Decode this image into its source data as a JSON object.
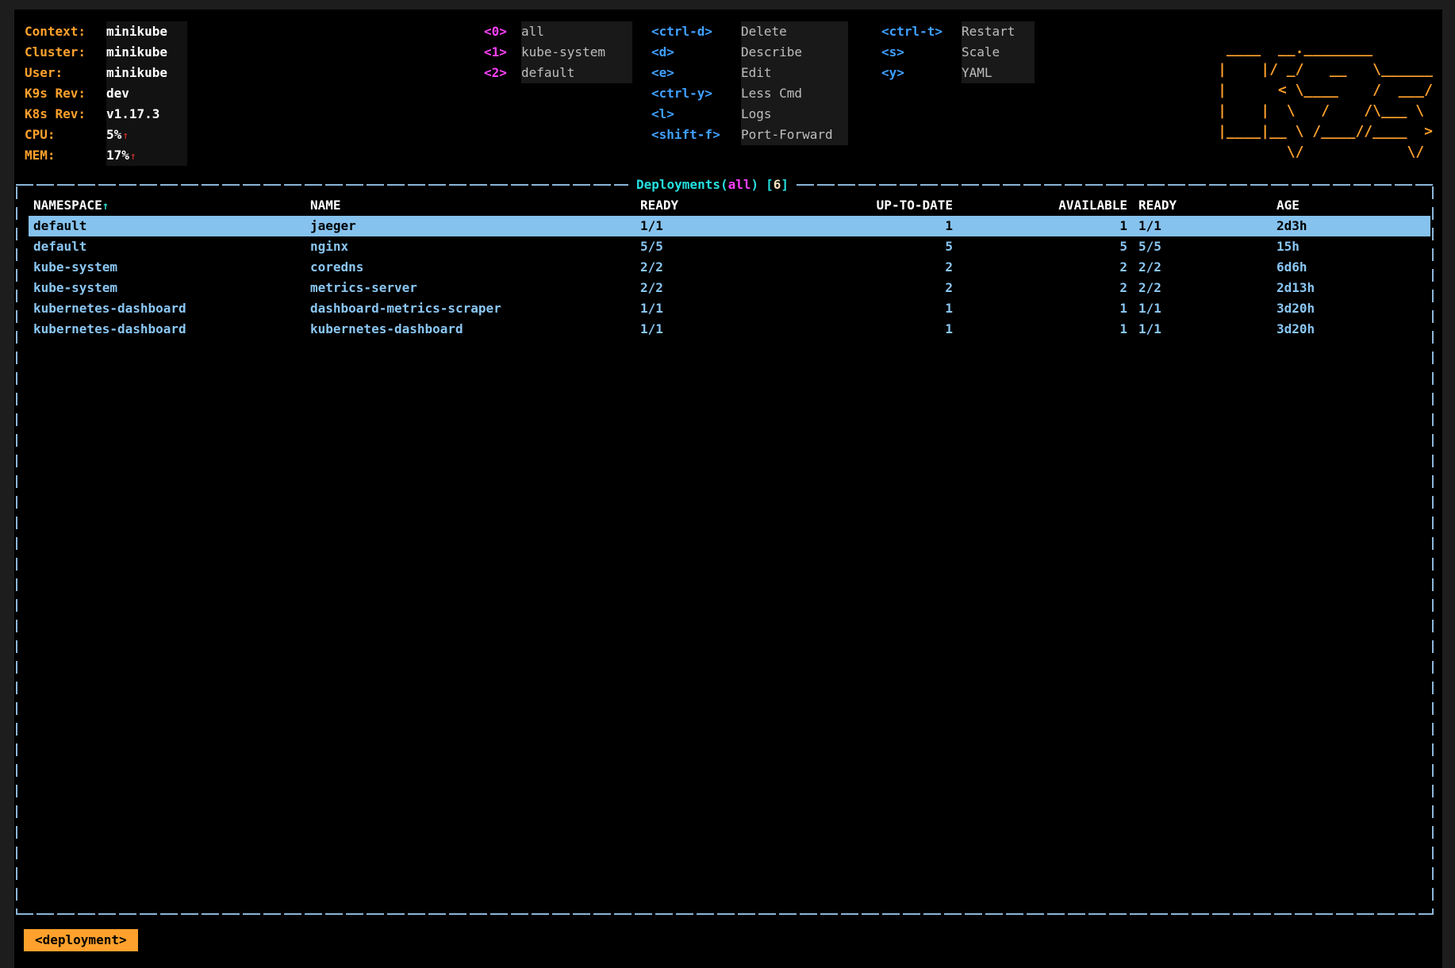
{
  "cluster_info": {
    "rows": [
      {
        "label": "Context:",
        "value": "minikube"
      },
      {
        "label": "Cluster:",
        "value": "minikube"
      },
      {
        "label": "User:",
        "value": "minikube"
      },
      {
        "label": "K9s Rev:",
        "value": "dev"
      },
      {
        "label": "K8s Rev:",
        "value": "v1.17.3"
      },
      {
        "label": "CPU:",
        "value": "5%",
        "trend": "↑"
      },
      {
        "label": "MEM:",
        "value": "17%",
        "trend": "↑"
      }
    ]
  },
  "namespace_hotkeys": [
    {
      "key": "<0>",
      "label": "all"
    },
    {
      "key": "<1>",
      "label": "kube-system"
    },
    {
      "key": "<2>",
      "label": "default"
    }
  ],
  "menu_primary": [
    {
      "key": "<ctrl-d>",
      "label": "Delete"
    },
    {
      "key": "<d>",
      "label": "Describe"
    },
    {
      "key": "<e>",
      "label": "Edit"
    },
    {
      "key": "<ctrl-y>",
      "label": "Less Cmd"
    },
    {
      "key": "<l>",
      "label": "Logs"
    },
    {
      "key": "<shift-f>",
      "label": "Port-Forward"
    }
  ],
  "menu_secondary": [
    {
      "key": "<ctrl-t>",
      "label": "Restart"
    },
    {
      "key": "<s>",
      "label": "Scale"
    },
    {
      "key": "<y>",
      "label": "YAML"
    }
  ],
  "logo": " ____  __.________\n|    |/ _/   __   \\______\n|      < \\____    /  ___/\n|    |  \\   /    /\\___ \\\n|____|__ \\ /____//____  >\n        \\/            \\/",
  "table": {
    "title": {
      "resource": "Deployments(",
      "namespace": "all",
      "close": ")",
      "bracket_open": "[",
      "count": "6",
      "bracket_close": "]"
    },
    "sort_arrow": "↑",
    "headers": [
      "NAMESPACE",
      "NAME",
      "READY",
      "UP-TO-DATE",
      "AVAILABLE",
      "READY",
      "AGE"
    ],
    "rows": [
      {
        "namespace": "default",
        "name": "jaeger",
        "ready": "1/1",
        "up_to_date": "1",
        "available": "1",
        "ready2": "1/1",
        "age": "2d3h",
        "selected": true
      },
      {
        "namespace": "default",
        "name": "nginx",
        "ready": "5/5",
        "up_to_date": "5",
        "available": "5",
        "ready2": "5/5",
        "age": "15h",
        "selected": false
      },
      {
        "namespace": "kube-system",
        "name": "coredns",
        "ready": "2/2",
        "up_to_date": "2",
        "available": "2",
        "ready2": "2/2",
        "age": "6d6h",
        "selected": false
      },
      {
        "namespace": "kube-system",
        "name": "metrics-server",
        "ready": "2/2",
        "up_to_date": "2",
        "available": "2",
        "ready2": "2/2",
        "age": "2d13h",
        "selected": false
      },
      {
        "namespace": "kubernetes-dashboard",
        "name": "dashboard-metrics-scraper",
        "ready": "1/1",
        "up_to_date": "1",
        "available": "1",
        "ready2": "1/1",
        "age": "3d20h",
        "selected": false
      },
      {
        "namespace": "kubernetes-dashboard",
        "name": "kubernetes-dashboard",
        "ready": "1/1",
        "up_to_date": "1",
        "available": "1",
        "ready2": "1/1",
        "age": "3d20h",
        "selected": false
      }
    ]
  },
  "breadcrumb": "<deployment>",
  "colors": {
    "background": "#000000",
    "frame": "#1d1d1d",
    "accent_orange": "#ffa12c",
    "magenta": "#ff40fc",
    "key_blue": "#3fa0ff",
    "title_cyan": "#26dfdf",
    "row_blue": "#8ac6f2",
    "selected_bg": "#85c2ee",
    "border_blue": "#8cb6d9",
    "trend_red": "#e8342c",
    "count_cream": "#f2e3be",
    "text_gray": "#bdbdbd",
    "text_white": "#ffffff"
  }
}
